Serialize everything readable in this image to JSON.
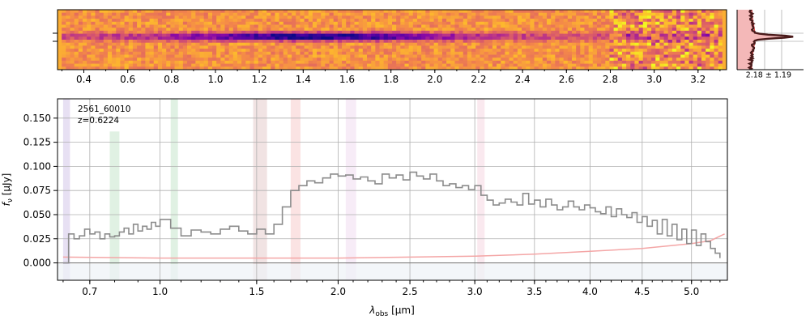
{
  "chart_data": [
    {
      "type": "heatmap",
      "panel": "2d-spectrum",
      "xlabel": "",
      "ylabel": "",
      "xlim": [
        0.28,
        3.33
      ],
      "tick_labels": [
        "0.4",
        "0.6",
        "0.8",
        "1.0",
        "1.2",
        "1.4",
        "1.6",
        "1.8",
        "2.0",
        "2.2",
        "2.4",
        "2.6",
        "2.8",
        "3.0",
        "3.2"
      ],
      "tick_values": [
        0.4,
        0.6,
        0.8,
        1.0,
        1.2,
        1.4,
        1.6,
        1.8,
        2.0,
        2.2,
        2.4,
        2.6,
        2.8,
        3.0,
        3.2
      ],
      "colormap": "plasma",
      "trace_row": 0.45
    },
    {
      "type": "line",
      "panel": "profile",
      "annotation": "2.18 ± 1.19",
      "profile_center": 0.45
    },
    {
      "type": "line",
      "panel": "1d-spectrum",
      "object_id": "2561_60010",
      "redshift_label": "z=0.6224",
      "xlabel_main": "λ",
      "xlabel_sub": "obs",
      "xlabel_unit": " [μm]",
      "ylabel_main": "f",
      "ylabel_sub": "ν",
      "ylabel_unit": " [μJy]",
      "xlim": [
        0.58,
        5.38
      ],
      "ylim": [
        -0.018,
        0.17
      ],
      "grid": true,
      "x_tick_labels": [
        "0.7",
        "1.0",
        "1.5",
        "2.0",
        "2.5",
        "3.0",
        "3.5",
        "4.0",
        "4.5",
        "5.0"
      ],
      "x_tick_values": [
        0.7,
        1.0,
        1.5,
        2.0,
        2.5,
        3.0,
        3.5,
        4.0,
        4.5,
        5.0
      ],
      "y_tick_labels": [
        "0.000",
        "0.025",
        "0.050",
        "0.075",
        "0.100",
        "0.125",
        "0.150"
      ],
      "y_tick_values": [
        0,
        0.025,
        0.05,
        0.075,
        0.1,
        0.125,
        0.15
      ],
      "x_scale": "sqrt",
      "series": [
        {
          "role": "flux",
          "color": "#8c8c8c",
          "x": [
            0.6,
            0.62,
            0.64,
            0.66,
            0.68,
            0.7,
            0.72,
            0.74,
            0.76,
            0.78,
            0.8,
            0.82,
            0.84,
            0.86,
            0.88,
            0.9,
            0.92,
            0.94,
            0.96,
            0.98,
            1.0,
            1.05,
            1.1,
            1.15,
            1.2,
            1.25,
            1.3,
            1.35,
            1.4,
            1.45,
            1.5,
            1.55,
            1.6,
            1.65,
            1.7,
            1.75,
            1.8,
            1.85,
            1.9,
            1.95,
            2.0,
            2.05,
            2.1,
            2.15,
            2.2,
            2.25,
            2.3,
            2.35,
            2.4,
            2.45,
            2.5,
            2.55,
            2.6,
            2.65,
            2.7,
            2.75,
            2.8,
            2.85,
            2.9,
            2.95,
            3.0,
            3.05,
            3.1,
            3.15,
            3.2,
            3.25,
            3.3,
            3.35,
            3.4,
            3.45,
            3.5,
            3.55,
            3.6,
            3.65,
            3.7,
            3.75,
            3.8,
            3.85,
            3.9,
            3.95,
            4.0,
            4.05,
            4.1,
            4.15,
            4.2,
            4.25,
            4.3,
            4.35,
            4.4,
            4.45,
            4.5,
            4.55,
            4.6,
            4.65,
            4.7,
            4.75,
            4.8,
            4.85,
            4.9,
            4.95,
            5.0,
            5.05,
            5.1,
            5.15,
            5.2,
            5.25,
            5.3
          ],
          "y": [
            0.0,
            0.03,
            0.025,
            0.028,
            0.035,
            0.03,
            0.032,
            0.025,
            0.03,
            0.027,
            0.028,
            0.032,
            0.036,
            0.03,
            0.04,
            0.033,
            0.038,
            0.035,
            0.042,
            0.038,
            0.045,
            0.036,
            0.028,
            0.034,
            0.032,
            0.03,
            0.035,
            0.038,
            0.033,
            0.03,
            0.035,
            0.03,
            0.04,
            0.058,
            0.075,
            0.08,
            0.085,
            0.083,
            0.088,
            0.092,
            0.09,
            0.091,
            0.087,
            0.089,
            0.085,
            0.082,
            0.092,
            0.088,
            0.091,
            0.086,
            0.094,
            0.09,
            0.087,
            0.092,
            0.085,
            0.08,
            0.082,
            0.078,
            0.08,
            0.076,
            0.08,
            0.07,
            0.065,
            0.06,
            0.062,
            0.066,
            0.063,
            0.06,
            0.072,
            0.061,
            0.065,
            0.058,
            0.066,
            0.06,
            0.055,
            0.058,
            0.064,
            0.058,
            0.055,
            0.06,
            0.057,
            0.053,
            0.051,
            0.058,
            0.048,
            0.056,
            0.05,
            0.047,
            0.052,
            0.042,
            0.048,
            0.038,
            0.044,
            0.03,
            0.045,
            0.028,
            0.04,
            0.024,
            0.035,
            0.02,
            0.034,
            0.018,
            0.03,
            0.022,
            0.015,
            0.01,
            0.005
          ],
          "step": true
        },
        {
          "role": "error",
          "color": "#f4a6a6",
          "x": [
            0.6,
            1.0,
            1.5,
            2.0,
            2.5,
            3.0,
            3.5,
            4.0,
            4.5,
            4.8,
            5.0,
            5.2,
            5.35
          ],
          "y": [
            0.006,
            0.005,
            0.005,
            0.005,
            0.006,
            0.007,
            0.009,
            0.012,
            0.015,
            0.018,
            0.02,
            0.023,
            0.03
          ]
        }
      ],
      "line_bands": [
        {
          "x0": 0.6,
          "x1": 0.625,
          "color": "#b9a6de",
          "ymax": 1.0
        },
        {
          "x0": 0.78,
          "x1": 0.82,
          "color": "#a6d8b0",
          "ymax": 0.82
        },
        {
          "x0": 1.05,
          "x1": 1.085,
          "color": "#a6d8b0",
          "ymax": 1.0
        },
        {
          "x0": 1.48,
          "x1": 1.56,
          "color": "#d8b0b0",
          "ymax": 1.0
        },
        {
          "x0": 1.7,
          "x1": 1.76,
          "color": "#f4b0b0",
          "ymax": 1.0
        },
        {
          "x0": 2.05,
          "x1": 2.12,
          "color": "#e8c8e8",
          "ymax": 1.0
        },
        {
          "x0": 3.02,
          "x1": 3.08,
          "color": "#f0c0d0",
          "ymax": 1.0
        }
      ]
    }
  ]
}
